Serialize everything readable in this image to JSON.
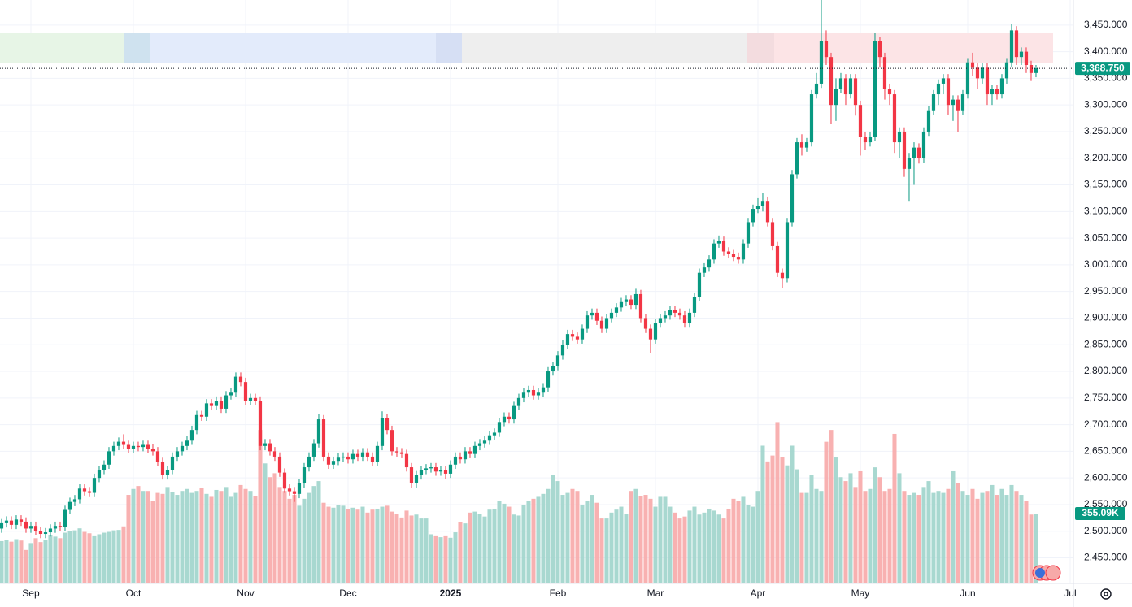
{
  "chart_data": {
    "type": "candlestick",
    "colors": {
      "up": "#089981",
      "down": "#f23645",
      "up_volume": "#9fd4cb",
      "down_volume": "#f7a9a8"
    },
    "grid": true,
    "xlim": [
      -0.33,
      219.67
    ],
    "xticks": [
      {
        "value": 6,
        "label": "Sep"
      },
      {
        "value": 27,
        "label": "Oct"
      },
      {
        "value": 50,
        "label": "Nov"
      },
      {
        "value": 71,
        "label": "Dec"
      },
      {
        "value": 92,
        "label": "2025"
      },
      {
        "value": 114,
        "label": "Feb"
      },
      {
        "value": 134,
        "label": "Mar"
      },
      {
        "value": 155,
        "label": "Apr"
      },
      {
        "value": 176,
        "label": "May"
      },
      {
        "value": 198,
        "label": "Jun"
      },
      {
        "value": 219,
        "label": "Jul"
      }
    ],
    "ylim": [
      2402,
      3497
    ],
    "yticks": [
      {
        "value": 2450,
        "label": "2,450.000"
      },
      {
        "value": 2500,
        "label": "2,500.000"
      },
      {
        "value": 2550,
        "label": "2,550.000"
      },
      {
        "value": 2600,
        "label": "2,600.000"
      },
      {
        "value": 2650,
        "label": "2,650.000"
      },
      {
        "value": 2700,
        "label": "2,700.000"
      },
      {
        "value": 2750,
        "label": "2,750.000"
      },
      {
        "value": 2800,
        "label": "2,800.000"
      },
      {
        "value": 2850,
        "label": "2,850.000"
      },
      {
        "value": 2900,
        "label": "2,900.000"
      },
      {
        "value": 2950,
        "label": "2,950.000"
      },
      {
        "value": 3000,
        "label": "3,000.000"
      },
      {
        "value": 3050,
        "label": "3,050.000"
      },
      {
        "value": 3100,
        "label": "3,100.000"
      },
      {
        "value": 3150,
        "label": "3,150.000"
      },
      {
        "value": 3200,
        "label": "3,200.000"
      },
      {
        "value": 3250,
        "label": "3,250.000"
      },
      {
        "value": 3300,
        "label": "3,300.000"
      },
      {
        "value": 3350,
        "label": "3,350.000"
      },
      {
        "value": 3400,
        "label": "3,400.000"
      },
      {
        "value": 3450,
        "label": "3,450.000"
      }
    ],
    "y2lim": [
      0,
      2965
    ],
    "last_price_label": "3,368.750",
    "last_volume_label": "355.09K",
    "open": [
      2505,
      2515,
      2520,
      2512,
      2522,
      2518,
      2505,
      2510,
      2500,
      2495,
      2498,
      2505,
      2510,
      2508,
      2540,
      2555,
      2560,
      2580,
      2575,
      2572,
      2600,
      2615,
      2625,
      2650,
      2660,
      2668,
      2662,
      2655,
      2660,
      2658,
      2662,
      2655,
      2650,
      2630,
      2605,
      2615,
      2640,
      2650,
      2660,
      2670,
      2690,
      2718,
      2715,
      2740,
      2735,
      2745,
      2730,
      2755,
      2760,
      2790,
      2780,
      2745,
      2750,
      2745,
      2660,
      2665,
      2650,
      2640,
      2610,
      2580,
      2575,
      2570,
      2590,
      2620,
      2640,
      2665,
      2710,
      2640,
      2625,
      2632,
      2638,
      2640,
      2635,
      2645,
      2640,
      2648,
      2640,
      2630,
      2660,
      2712,
      2690,
      2650,
      2648,
      2645,
      2620,
      2590,
      2605,
      2615,
      2618,
      2620,
      2612,
      2615,
      2608,
      2625,
      2640,
      2635,
      2650,
      2645,
      2660,
      2665,
      2670,
      2680,
      2685,
      2705,
      2715,
      2710,
      2735,
      2750,
      2760,
      2765,
      2755,
      2760,
      2770,
      2800,
      2810,
      2830,
      2850,
      2870,
      2865,
      2860,
      2880,
      2905,
      2910,
      2895,
      2880,
      2900,
      2910,
      2920,
      2930,
      2935,
      2925,
      2945,
      2900,
      2880,
      2860,
      2890,
      2900,
      2905,
      2915,
      2910,
      2905,
      2890,
      2910,
      2940,
      2985,
      2995,
      3010,
      3040,
      3045,
      3025,
      3020,
      3015,
      3010,
      3040,
      3080,
      3105,
      3110,
      3120,
      3080,
      3035,
      2985,
      2975,
      3080,
      3170,
      3230,
      3220,
      3230,
      3320,
      3340,
      3420,
      3390,
      3300,
      3330,
      3350,
      3320,
      3350,
      3300,
      3240,
      3230,
      3240,
      3420,
      3390,
      3330,
      3320,
      3230,
      3250,
      3180,
      3200,
      3220,
      3200,
      3250,
      3290,
      3320,
      3340,
      3350,
      3300,
      3310,
      3290,
      3320,
      3380,
      3370,
      3350,
      3370,
      3320,
      3330,
      3320,
      3350,
      3380,
      3440,
      3390,
      3400,
      3375,
      3360
    ],
    "high": [
      2523,
      2528,
      2528,
      2530,
      2530,
      2526,
      2518,
      2518,
      2508,
      2506,
      2513,
      2518,
      2518,
      2548,
      2563,
      2568,
      2588,
      2588,
      2583,
      2608,
      2623,
      2633,
      2658,
      2668,
      2676,
      2682,
      2670,
      2668,
      2668,
      2670,
      2670,
      2663,
      2658,
      2638,
      2623,
      2648,
      2658,
      2668,
      2678,
      2698,
      2726,
      2726,
      2748,
      2748,
      2753,
      2753,
      2763,
      2768,
      2798,
      2798,
      2788,
      2758,
      2758,
      2753,
      2673,
      2673,
      2658,
      2648,
      2618,
      2588,
      2583,
      2598,
      2628,
      2648,
      2673,
      2720,
      2718,
      2648,
      2640,
      2646,
      2648,
      2648,
      2653,
      2653,
      2656,
      2656,
      2648,
      2668,
      2725,
      2720,
      2698,
      2658,
      2656,
      2653,
      2628,
      2613,
      2623,
      2626,
      2628,
      2628,
      2623,
      2623,
      2633,
      2648,
      2648,
      2658,
      2658,
      2668,
      2673,
      2678,
      2688,
      2693,
      2713,
      2723,
      2723,
      2743,
      2758,
      2768,
      2773,
      2773,
      2768,
      2778,
      2808,
      2818,
      2838,
      2858,
      2878,
      2878,
      2873,
      2888,
      2913,
      2918,
      2918,
      2903,
      2908,
      2918,
      2928,
      2938,
      2943,
      2943,
      2955,
      2953,
      2908,
      2888,
      2898,
      2908,
      2913,
      2923,
      2923,
      2918,
      2913,
      2918,
      2948,
      2993,
      3003,
      3018,
      3048,
      3055,
      3053,
      3033,
      3028,
      3023,
      3048,
      3088,
      3113,
      3125,
      3135,
      3128,
      3088,
      3043,
      2993,
      3088,
      3178,
      3238,
      3245,
      3238,
      3328,
      3360,
      3500,
      3440,
      3398,
      3350,
      3360,
      3358,
      3358,
      3358,
      3308,
      3250,
      3250,
      3435,
      3428,
      3398,
      3340,
      3328,
      3258,
      3258,
      3210,
      3230,
      3228,
      3258,
      3298,
      3328,
      3348,
      3358,
      3358,
      3318,
      3318,
      3328,
      3388,
      3398,
      3378,
      3378,
      3378,
      3338,
      3338,
      3358,
      3388,
      3452,
      3448,
      3408,
      3408,
      3383,
      3375
    ],
    "low": [
      2497,
      2507,
      2504,
      2504,
      2510,
      2497,
      2497,
      2492,
      2487,
      2487,
      2490,
      2497,
      2500,
      2500,
      2532,
      2547,
      2552,
      2567,
      2564,
      2564,
      2592,
      2607,
      2617,
      2642,
      2652,
      2654,
      2647,
      2647,
      2650,
      2650,
      2647,
      2642,
      2622,
      2597,
      2597,
      2607,
      2632,
      2642,
      2652,
      2662,
      2682,
      2707,
      2707,
      2727,
      2727,
      2722,
      2722,
      2747,
      2752,
      2772,
      2737,
      2737,
      2737,
      2652,
      2652,
      2642,
      2632,
      2602,
      2572,
      2567,
      2555,
      2562,
      2582,
      2612,
      2632,
      2657,
      2632,
      2617,
      2617,
      2624,
      2630,
      2627,
      2627,
      2632,
      2632,
      2632,
      2622,
      2622,
      2652,
      2682,
      2642,
      2640,
      2637,
      2612,
      2582,
      2582,
      2597,
      2607,
      2610,
      2604,
      2604,
      2598,
      2600,
      2617,
      2627,
      2627,
      2637,
      2637,
      2652,
      2657,
      2662,
      2672,
      2677,
      2697,
      2702,
      2702,
      2727,
      2742,
      2752,
      2747,
      2747,
      2752,
      2762,
      2792,
      2802,
      2822,
      2842,
      2857,
      2852,
      2852,
      2872,
      2897,
      2887,
      2872,
      2872,
      2892,
      2902,
      2912,
      2922,
      2917,
      2917,
      2892,
      2872,
      2835,
      2852,
      2882,
      2892,
      2897,
      2902,
      2897,
      2882,
      2882,
      2902,
      2932,
      2977,
      2987,
      3002,
      3032,
      3017,
      3012,
      3007,
      3002,
      3002,
      3032,
      3072,
      3097,
      3100,
      3072,
      3027,
      2977,
      2957,
      2967,
      3072,
      3162,
      3205,
      3212,
      3222,
      3312,
      3332,
      3375,
      3265,
      3270,
      3322,
      3300,
      3312,
      3280,
      3205,
      3215,
      3222,
      3232,
      3370,
      3310,
      3300,
      3210,
      3200,
      3165,
      3120,
      3150,
      3190,
      3192,
      3242,
      3282,
      3300,
      3320,
      3282,
      3270,
      3250,
      3282,
      3312,
      3355,
      3330,
      3340,
      3300,
      3300,
      3310,
      3312,
      3340,
      3372,
      3375,
      3375,
      3360,
      3345,
      3352
    ],
    "close": [
      2515,
      2520,
      2512,
      2522,
      2518,
      2505,
      2510,
      2500,
      2495,
      2498,
      2505,
      2510,
      2508,
      2540,
      2555,
      2560,
      2580,
      2575,
      2572,
      2600,
      2615,
      2625,
      2650,
      2660,
      2668,
      2662,
      2655,
      2660,
      2658,
      2662,
      2655,
      2650,
      2630,
      2605,
      2615,
      2640,
      2650,
      2660,
      2670,
      2690,
      2718,
      2715,
      2740,
      2735,
      2745,
      2730,
      2755,
      2760,
      2790,
      2780,
      2745,
      2750,
      2745,
      2660,
      2665,
      2650,
      2640,
      2610,
      2580,
      2575,
      2570,
      2590,
      2620,
      2640,
      2665,
      2710,
      2640,
      2625,
      2632,
      2638,
      2640,
      2635,
      2645,
      2640,
      2648,
      2640,
      2630,
      2660,
      2712,
      2690,
      2650,
      2648,
      2645,
      2620,
      2590,
      2605,
      2615,
      2618,
      2620,
      2612,
      2615,
      2608,
      2625,
      2640,
      2635,
      2650,
      2645,
      2660,
      2665,
      2670,
      2680,
      2685,
      2705,
      2715,
      2710,
      2735,
      2750,
      2760,
      2765,
      2755,
      2760,
      2770,
      2800,
      2810,
      2830,
      2850,
      2870,
      2865,
      2860,
      2880,
      2905,
      2910,
      2895,
      2880,
      2900,
      2910,
      2920,
      2930,
      2935,
      2925,
      2945,
      2900,
      2880,
      2860,
      2890,
      2900,
      2905,
      2915,
      2910,
      2905,
      2890,
      2910,
      2940,
      2985,
      2995,
      3010,
      3040,
      3045,
      3025,
      3020,
      3015,
      3010,
      3040,
      3080,
      3105,
      3110,
      3120,
      3080,
      3035,
      2985,
      2975,
      3080,
      3170,
      3230,
      3220,
      3230,
      3320,
      3340,
      3420,
      3390,
      3300,
      3330,
      3350,
      3320,
      3350,
      3300,
      3240,
      3230,
      3240,
      3420,
      3390,
      3330,
      3320,
      3230,
      3250,
      3180,
      3200,
      3220,
      3200,
      3250,
      3290,
      3320,
      3340,
      3350,
      3300,
      3310,
      3290,
      3320,
      3380,
      3370,
      3350,
      3370,
      3320,
      3330,
      3320,
      3350,
      3380,
      3440,
      3390,
      3400,
      3375,
      3360,
      3368.75
    ],
    "volume": [
      215,
      220,
      212,
      225,
      218,
      170,
      205,
      230,
      210,
      222,
      245,
      238,
      230,
      258,
      265,
      270,
      280,
      262,
      255,
      240,
      250,
      258,
      262,
      270,
      272,
      290,
      450,
      480,
      495,
      470,
      470,
      420,
      460,
      455,
      490,
      465,
      450,
      470,
      480,
      460,
      470,
      485,
      455,
      440,
      475,
      470,
      490,
      440,
      460,
      500,
      480,
      470,
      445,
      780,
      610,
      540,
      560,
      490,
      470,
      430,
      450,
      395,
      430,
      460,
      495,
      520,
      410,
      390,
      385,
      400,
      395,
      380,
      385,
      375,
      390,
      360,
      375,
      380,
      390,
      395,
      365,
      355,
      335,
      370,
      345,
      350,
      330,
      330,
      250,
      240,
      235,
      240,
      232,
      260,
      310,
      305,
      360,
      365,
      355,
      340,
      375,
      380,
      420,
      405,
      390,
      350,
      345,
      400,
      420,
      430,
      440,
      455,
      480,
      550,
      520,
      450,
      460,
      480,
      470,
      400,
      420,
      450,
      410,
      330,
      330,
      360,
      375,
      390,
      355,
      470,
      480,
      445,
      450,
      430,
      390,
      440,
      440,
      390,
      360,
      330,
      340,
      370,
      390,
      350,
      360,
      380,
      370,
      350,
      330,
      380,
      430,
      420,
      440,
      400,
      390,
      470,
      700,
      620,
      650,
      820,
      640,
      600,
      700,
      580,
      460,
      460,
      550,
      480,
      470,
      720,
      780,
      640,
      540,
      520,
      560,
      490,
      570,
      470,
      480,
      590,
      540,
      470,
      480,
      760,
      560,
      470,
      450,
      460,
      450,
      490,
      520,
      460,
      470,
      460,
      480,
      570,
      510,
      470,
      450,
      480,
      430,
      460,
      470,
      500,
      450,
      480,
      450,
      500,
      470,
      450,
      420,
      350,
      355.09
    ]
  }
}
